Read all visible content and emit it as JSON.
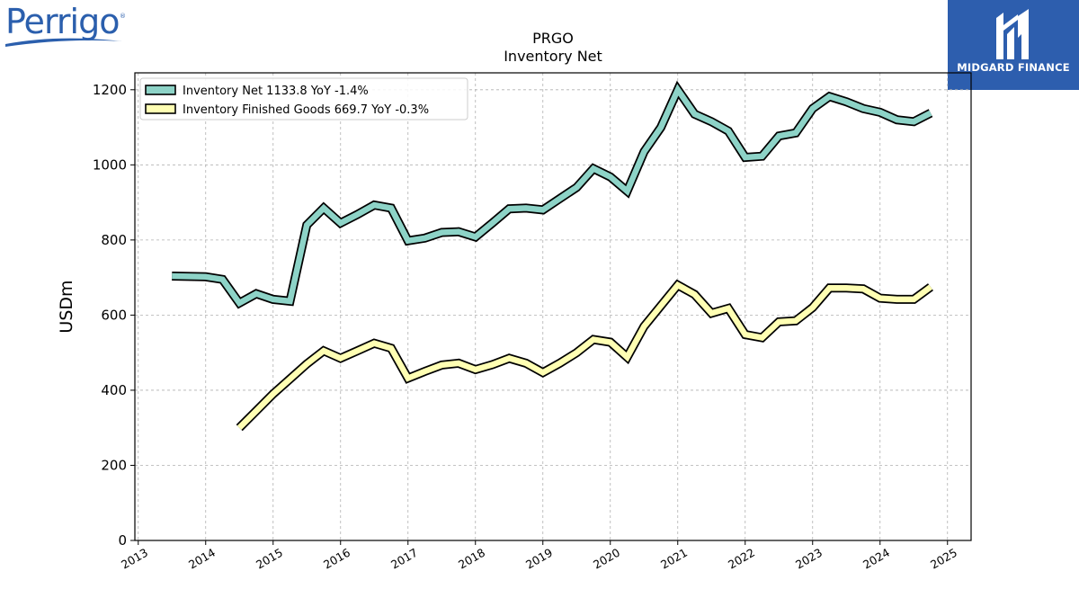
{
  "logos": {
    "left_brand": "Perrigo",
    "right_brand": "MIDGARD FINANCE"
  },
  "colors": {
    "series_1": "#8dd3c7",
    "series_2": "#ffffb3",
    "outline": "#000000",
    "grid": "#b0b0b0",
    "midgard_bg": "#2d5eae",
    "perrigo_blue": "#2b5fad"
  },
  "chart_data": {
    "type": "line",
    "title": "PRGO",
    "subtitle": "Inventory Net",
    "xlabel": "",
    "ylabel": "USDm",
    "xlim": [
      2012.95,
      2025.35
    ],
    "ylim": [
      0,
      1245
    ],
    "x_ticks": [
      2013,
      2014,
      2015,
      2016,
      2017,
      2018,
      2019,
      2020,
      2021,
      2022,
      2023,
      2024,
      2025
    ],
    "x_tick_labels": [
      "2013",
      "2014",
      "2015",
      "2016",
      "2017",
      "2018",
      "2019",
      "2020",
      "2021",
      "2022",
      "2023",
      "2024",
      "2025"
    ],
    "y_ticks": [
      0,
      200,
      400,
      600,
      800,
      1000,
      1200
    ],
    "y_tick_labels": [
      "0",
      "200",
      "400",
      "600",
      "800",
      "1000",
      "1200"
    ],
    "grid": true,
    "legend_position": "top-left",
    "series": [
      {
        "name": "Inventory Net  1133.8 YoY -1.4%",
        "color": "#8dd3c7",
        "x": [
          2013.5,
          2013.75,
          2014.0,
          2014.25,
          2014.5,
          2014.75,
          2015.0,
          2015.25,
          2015.5,
          2015.75,
          2016.0,
          2016.25,
          2016.5,
          2016.75,
          2017.0,
          2017.25,
          2017.5,
          2017.75,
          2018.0,
          2018.25,
          2018.5,
          2018.75,
          2019.0,
          2019.25,
          2019.5,
          2019.75,
          2020.0,
          2020.25,
          2020.5,
          2020.75,
          2021.0,
          2021.25,
          2021.5,
          2021.75,
          2022.0,
          2022.25,
          2022.5,
          2022.75,
          2023.0,
          2023.25,
          2023.5,
          2023.75,
          2024.0,
          2024.25,
          2024.5,
          2024.75
        ],
        "y": [
          704,
          703,
          702,
          695,
          632,
          657,
          642,
          637,
          840,
          885,
          845,
          868,
          893,
          885,
          798,
          805,
          820,
          822,
          808,
          845,
          883,
          885,
          880,
          910,
          940,
          990,
          968,
          930,
          1035,
          1100,
          1200,
          1135,
          1115,
          1090,
          1020,
          1023,
          1077,
          1085,
          1150,
          1182,
          1168,
          1150,
          1140,
          1120,
          1115,
          1138
        ]
      },
      {
        "name": "Inventory Finished Goods  669.7 YoY -0.3%",
        "color": "#ffffb3",
        "x": [
          2014.5,
          2014.75,
          2015.0,
          2015.25,
          2015.5,
          2015.75,
          2016.0,
          2016.25,
          2016.5,
          2016.75,
          2017.0,
          2017.25,
          2017.5,
          2017.75,
          2018.0,
          2018.25,
          2018.5,
          2018.75,
          2019.0,
          2019.25,
          2019.5,
          2019.75,
          2020.0,
          2020.25,
          2020.5,
          2020.75,
          2021.0,
          2021.25,
          2021.5,
          2021.75,
          2022.0,
          2022.25,
          2022.5,
          2022.75,
          2023.0,
          2023.25,
          2023.5,
          2023.75,
          2024.0,
          2024.25,
          2024.5,
          2024.75
        ],
        "y": [
          300,
          345,
          390,
          430,
          470,
          505,
          485,
          505,
          525,
          512,
          432,
          450,
          467,
          472,
          455,
          468,
          485,
          472,
          447,
          472,
          500,
          535,
          528,
          488,
          570,
          625,
          680,
          655,
          605,
          618,
          548,
          540,
          582,
          585,
          620,
          672,
          672,
          670,
          645,
          642,
          642,
          675
        ]
      }
    ]
  }
}
